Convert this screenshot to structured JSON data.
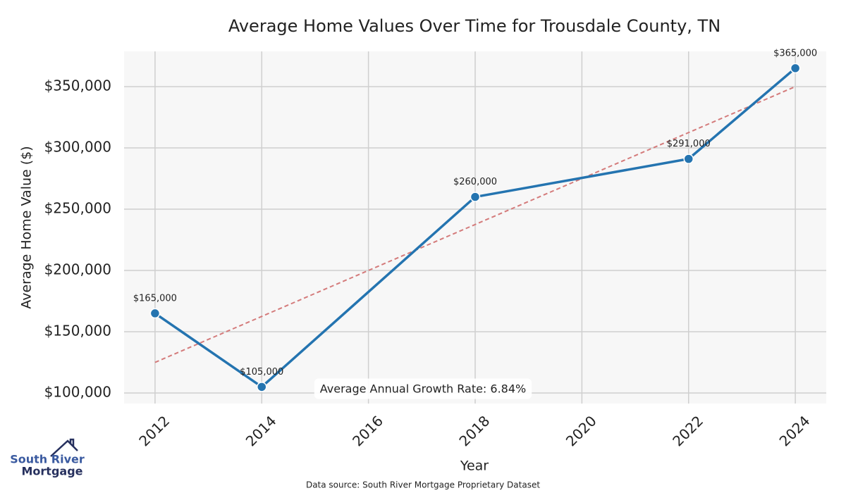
{
  "chart_data": {
    "type": "line",
    "title": "Average Home Values Over Time for Trousdale County, TN",
    "x_label": "Year",
    "y_label": "Average Home Value ($)",
    "x": [
      2012,
      2014,
      2018,
      2022,
      2024
    ],
    "series": [
      {
        "color": "#2474b0",
        "values": [
          165000,
          105000,
          260000,
          291000,
          365000
        ],
        "value_labels": [
          "$165,000",
          "$105,000",
          "$260,000",
          "$291,000",
          "$365,000"
        ]
      }
    ],
    "trendline": {
      "x": [
        2012,
        2024
      ],
      "values": [
        125000,
        350000
      ],
      "color": "#d47b7b"
    },
    "xlim": [
      2011.42,
      2024.58
    ],
    "ylim": [
      91400,
      378700
    ],
    "xticks": [
      2012,
      2014,
      2016,
      2018,
      2020,
      2022,
      2024
    ],
    "yticks": [
      {
        "value": 100000,
        "label": "$100,000"
      },
      {
        "value": 150000,
        "label": "$150,000"
      },
      {
        "value": 200000,
        "label": "$200,000"
      },
      {
        "value": 250000,
        "label": "$250,000"
      },
      {
        "value": 300000,
        "label": "$300,000"
      },
      {
        "value": 350000,
        "label": "$350,000"
      }
    ],
    "grid": true,
    "annotation": "Average Annual Growth Rate: 6.84%",
    "source": "Data source: South River Mortgage Proprietary Dataset"
  },
  "branding": {
    "logo_lines": [
      "South River",
      "Mortgage"
    ]
  }
}
